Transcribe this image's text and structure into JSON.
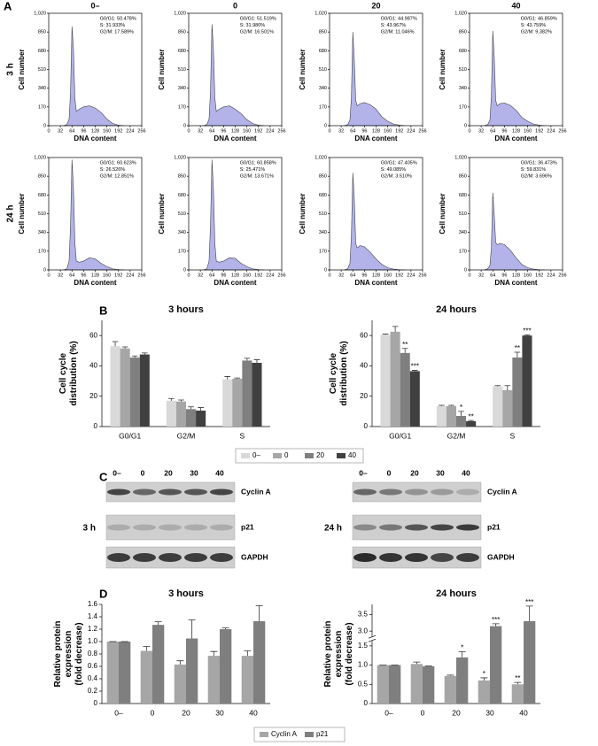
{
  "panel_labels": [
    "A",
    "B",
    "C",
    "D"
  ],
  "flow_columns": [
    "0–",
    "0",
    "20",
    "40"
  ],
  "flow_rows": [
    "3 h",
    "24 h"
  ],
  "chart_data": [
    {
      "type": "area",
      "xlabel": "DNA content",
      "ylabel": "Cell number",
      "annotations": [
        "G0/G1: 50.478%",
        "S: 31.933%",
        "G2/M: 17.589%"
      ],
      "x": [
        40,
        50,
        56,
        60,
        64,
        68,
        72,
        76,
        84,
        96,
        112,
        128,
        144,
        160,
        176,
        192,
        208
      ],
      "values": [
        0,
        10,
        60,
        300,
        900,
        700,
        250,
        130,
        150,
        170,
        180,
        160,
        120,
        60,
        20,
        5,
        0
      ],
      "color": "#b3b3ea",
      "xlim": [
        0,
        256
      ],
      "xticks": [
        0,
        32,
        64,
        96,
        128,
        160,
        192,
        224,
        256
      ],
      "ylim": [
        0,
        1020
      ],
      "yticks": [
        0,
        170,
        340,
        510,
        680,
        850,
        {
          "value": 1020,
          "label": "1,020"
        }
      ]
    },
    {
      "type": "area",
      "xlabel": "DNA content",
      "ylabel": "Cell number",
      "annotations": [
        "G0/G1: 51.519%",
        "S: 31.980%",
        "G2/M: 16.501%"
      ],
      "x": [
        40,
        50,
        56,
        60,
        64,
        68,
        72,
        76,
        84,
        96,
        112,
        128,
        144,
        160,
        176,
        192,
        208
      ],
      "values": [
        0,
        10,
        60,
        310,
        920,
        700,
        250,
        130,
        150,
        170,
        180,
        150,
        110,
        55,
        20,
        5,
        0
      ],
      "color": "#b3b3ea",
      "xlim": [
        0,
        256
      ],
      "xticks": [
        0,
        32,
        64,
        96,
        128,
        160,
        192,
        224,
        256
      ],
      "ylim": [
        0,
        1020
      ],
      "yticks": [
        0,
        170,
        340,
        510,
        680,
        850,
        {
          "value": 1020,
          "label": "1,020"
        }
      ]
    },
    {
      "type": "area",
      "xlabel": "DNA content",
      "ylabel": "Cell number",
      "annotations": [
        "G0/G1: 44.987%",
        "S: 43.967%",
        "G2/M: 11.046%"
      ],
      "x": [
        40,
        50,
        56,
        60,
        64,
        68,
        72,
        76,
        84,
        96,
        112,
        128,
        144,
        160,
        176,
        192,
        208
      ],
      "values": [
        0,
        10,
        50,
        250,
        850,
        600,
        230,
        180,
        200,
        210,
        190,
        150,
        80,
        40,
        15,
        5,
        0
      ],
      "color": "#b3b3ea",
      "xlim": [
        0,
        256
      ],
      "xticks": [
        0,
        32,
        64,
        96,
        128,
        160,
        192,
        224,
        256
      ],
      "ylim": [
        0,
        1020
      ],
      "yticks": [
        0,
        170,
        340,
        510,
        680,
        850,
        {
          "value": 1020,
          "label": "1,020"
        }
      ]
    },
    {
      "type": "area",
      "xlabel": "DNA content",
      "ylabel": "Cell number",
      "annotations": [
        "G0/G1: 46.859%",
        "S: 43.759%",
        "G2/M: 9.382%"
      ],
      "x": [
        40,
        50,
        56,
        60,
        64,
        68,
        72,
        76,
        84,
        96,
        112,
        128,
        144,
        160,
        176,
        192,
        208
      ],
      "values": [
        0,
        10,
        50,
        260,
        860,
        620,
        230,
        180,
        200,
        205,
        185,
        140,
        75,
        40,
        15,
        5,
        0
      ],
      "color": "#b3b3ea",
      "xlim": [
        0,
        256
      ],
      "xticks": [
        0,
        32,
        64,
        96,
        128,
        160,
        192,
        224,
        256
      ],
      "ylim": [
        0,
        1020
      ],
      "yticks": [
        0,
        170,
        340,
        510,
        680,
        850,
        {
          "value": 1020,
          "label": "1,020"
        }
      ]
    },
    {
      "type": "area",
      "xlabel": "DNA content",
      "ylabel": "Cell number",
      "annotations": [
        "G0/G1: 60.623%",
        "S: 26.526%",
        "G2/M: 12.851%"
      ],
      "x": [
        40,
        50,
        56,
        60,
        64,
        68,
        72,
        76,
        84,
        96,
        112,
        128,
        144,
        160,
        176,
        192,
        208
      ],
      "values": [
        0,
        10,
        80,
        400,
        1000,
        750,
        250,
        80,
        70,
        80,
        110,
        100,
        60,
        30,
        10,
        3,
        0
      ],
      "color": "#b3b3ea",
      "xlim": [
        0,
        256
      ],
      "xticks": [
        0,
        32,
        64,
        96,
        128,
        160,
        192,
        224,
        256
      ],
      "ylim": [
        0,
        1020
      ],
      "yticks": [
        0,
        170,
        340,
        510,
        680,
        850,
        {
          "value": 1020,
          "label": "1,020"
        }
      ]
    },
    {
      "type": "area",
      "xlabel": "DNA content",
      "ylabel": "Cell number",
      "annotations": [
        "G0/G1: 60.858%",
        "S: 25.471%",
        "G2/M: 13.671%"
      ],
      "x": [
        40,
        50,
        56,
        60,
        64,
        68,
        72,
        76,
        84,
        96,
        112,
        128,
        144,
        160,
        176,
        192,
        208
      ],
      "values": [
        0,
        10,
        80,
        410,
        1000,
        740,
        240,
        80,
        70,
        80,
        110,
        105,
        60,
        30,
        10,
        3,
        0
      ],
      "color": "#b3b3ea",
      "xlim": [
        0,
        256
      ],
      "xticks": [
        0,
        32,
        64,
        96,
        128,
        160,
        192,
        224,
        256
      ],
      "ylim": [
        0,
        1020
      ],
      "yticks": [
        0,
        170,
        340,
        510,
        680,
        850,
        {
          "value": 1020,
          "label": "1,020"
        }
      ]
    },
    {
      "type": "area",
      "xlabel": "DNA content",
      "ylabel": "Cell number",
      "annotations": [
        "G0/G1: 47.405%",
        "S: 49.085%",
        "G2/M: 3.510%"
      ],
      "x": [
        40,
        50,
        56,
        60,
        64,
        68,
        72,
        76,
        84,
        96,
        112,
        128,
        144,
        160,
        176,
        192,
        208
      ],
      "values": [
        0,
        10,
        60,
        300,
        880,
        650,
        240,
        200,
        220,
        210,
        160,
        100,
        50,
        20,
        8,
        2,
        0
      ],
      "color": "#b3b3ea",
      "xlim": [
        0,
        256
      ],
      "xticks": [
        0,
        32,
        64,
        96,
        128,
        160,
        192,
        224,
        256
      ],
      "ylim": [
        0,
        1020
      ],
      "yticks": [
        0,
        170,
        340,
        510,
        680,
        850,
        {
          "value": 1020,
          "label": "1,020"
        }
      ]
    },
    {
      "type": "area",
      "xlabel": "DNA content",
      "ylabel": "Cell number",
      "annotations": [
        "G0/G1: 36.473%",
        "S: 59.831%",
        "G2/M: 3.696%"
      ],
      "x": [
        40,
        50,
        56,
        60,
        64,
        68,
        72,
        76,
        84,
        96,
        112,
        128,
        144,
        160,
        176,
        192,
        208
      ],
      "values": [
        0,
        10,
        40,
        200,
        700,
        500,
        250,
        230,
        240,
        230,
        180,
        110,
        50,
        20,
        8,
        2,
        0
      ],
      "color": "#b3b3ea",
      "xlim": [
        0,
        256
      ],
      "xticks": [
        0,
        32,
        64,
        96,
        128,
        160,
        192,
        224,
        256
      ],
      "ylim": [
        0,
        1020
      ],
      "yticks": [
        0,
        170,
        340,
        510,
        680,
        850,
        {
          "value": 1020,
          "label": "1,020"
        }
      ]
    },
    {
      "type": "bar",
      "title": "3 hours",
      "ylabel": [
        "Cell cycle",
        "distribution (%)"
      ],
      "categories": [
        "G0/G1",
        "G2/M",
        "S"
      ],
      "ylim": [
        0,
        70
      ],
      "yticks": [
        0,
        20,
        40,
        60
      ],
      "series": [
        {
          "name": "0–",
          "color": "#d9d9d9",
          "values": [
            53,
            17,
            31
          ],
          "errors": [
            3,
            1.5,
            2
          ]
        },
        {
          "name": "0",
          "color": "#a6a6a6",
          "values": [
            51.5,
            16.5,
            31.5
          ],
          "errors": [
            1,
            1,
            0.5
          ]
        },
        {
          "name": "20",
          "color": "#7f7f7f",
          "values": [
            45.5,
            11.5,
            43.5
          ],
          "errors": [
            1,
            1.5,
            1.5
          ]
        },
        {
          "name": "40",
          "color": "#404040",
          "values": [
            47.5,
            10.5,
            42
          ],
          "errors": [
            1,
            2,
            2
          ]
        }
      ]
    },
    {
      "type": "bar",
      "title": "24 hours",
      "ylabel": [
        "Cell cycle",
        "distribution (%)"
      ],
      "categories": [
        "G0/G1",
        "G2/M",
        "S"
      ],
      "ylim": [
        0,
        70
      ],
      "yticks": [
        0,
        20,
        40,
        60
      ],
      "series": [
        {
          "name": "0–",
          "color": "#d9d9d9",
          "values": [
            60.5,
            13.5,
            26.5
          ],
          "errors": [
            0.5,
            0.5,
            0.5
          ]
        },
        {
          "name": "0",
          "color": "#a6a6a6",
          "values": [
            62.5,
            13.5,
            24
          ],
          "errors": [
            3.5,
            0.5,
            3
          ]
        },
        {
          "name": "20",
          "color": "#7f7f7f",
          "values": [
            48.5,
            7,
            45.5
          ],
          "errors": [
            3,
            3,
            3.5
          ],
          "annotations": [
            "**",
            "*",
            "**"
          ]
        },
        {
          "name": "40",
          "color": "#404040",
          "values": [
            36.5,
            3.5,
            60
          ],
          "errors": [
            0.5,
            0.5,
            0.5
          ],
          "annotations": [
            "***",
            "**",
            "***"
          ]
        }
      ]
    },
    {
      "type": "bar",
      "title": "3 hours",
      "ylabel": [
        "Relative protein",
        "expression",
        "(fold decrease)"
      ],
      "categories": [
        "0–",
        "0",
        "20",
        "30",
        "40"
      ],
      "ylim": [
        0,
        1.6
      ],
      "yticks": [
        0,
        0.2,
        0.4,
        0.6,
        0.8,
        {
          "value": 1,
          "label": "1.0"
        },
        1.2,
        1.4,
        1.6
      ],
      "series": [
        {
          "name": "Cyclin A",
          "color": "#a6a6a6",
          "values": [
            1,
            0.85,
            0.63,
            0.77,
            0.77
          ],
          "errors": [
            0,
            0.07,
            0.06,
            0.07,
            0.08
          ]
        },
        {
          "name": "p21",
          "color": "#7f7f7f",
          "values": [
            1,
            1.27,
            1.05,
            1.2,
            1.33
          ],
          "errors": [
            0,
            0.05,
            0.3,
            0.02,
            0.25
          ]
        }
      ]
    },
    {
      "type": "bar",
      "title": "24 hours",
      "ylabel": [
        "Relative protein",
        "expression",
        "(fold decrease)"
      ],
      "categories": [
        "0–",
        "0",
        "20",
        "30",
        "40"
      ],
      "ylim": [
        0,
        3.8
      ],
      "ybreak": [
        1.6,
        2.85
      ],
      "yticks": [
        0,
        0.5,
        {
          "value": 1,
          "label": "1.0"
        },
        1.5,
        {
          "value": 3,
          "label": "3.0"
        },
        3.5
      ],
      "series": [
        {
          "name": "Cyclin A",
          "color": "#a6a6a6",
          "values": [
            1,
            1.03,
            0.72,
            0.6,
            0.5
          ],
          "errors": [
            0,
            0.05,
            0.02,
            0.07,
            0.05
          ],
          "annotations": [
            null,
            null,
            null,
            "*",
            "**"
          ]
        },
        {
          "name": "p21",
          "color": "#7f7f7f",
          "values": [
            1,
            0.97,
            1.2,
            3.15,
            3.3
          ],
          "errors": [
            0,
            0.01,
            0.15,
            0.07,
            0.45
          ],
          "annotations": [
            null,
            null,
            "*",
            "***",
            "***"
          ]
        }
      ]
    }
  ],
  "blots": {
    "lanes": [
      "0–",
      "0",
      "20",
      "30",
      "40"
    ],
    "rows": [
      "Cyclin A",
      "p21",
      "GAPDH"
    ],
    "times": [
      "3 h",
      "24 h"
    ]
  }
}
